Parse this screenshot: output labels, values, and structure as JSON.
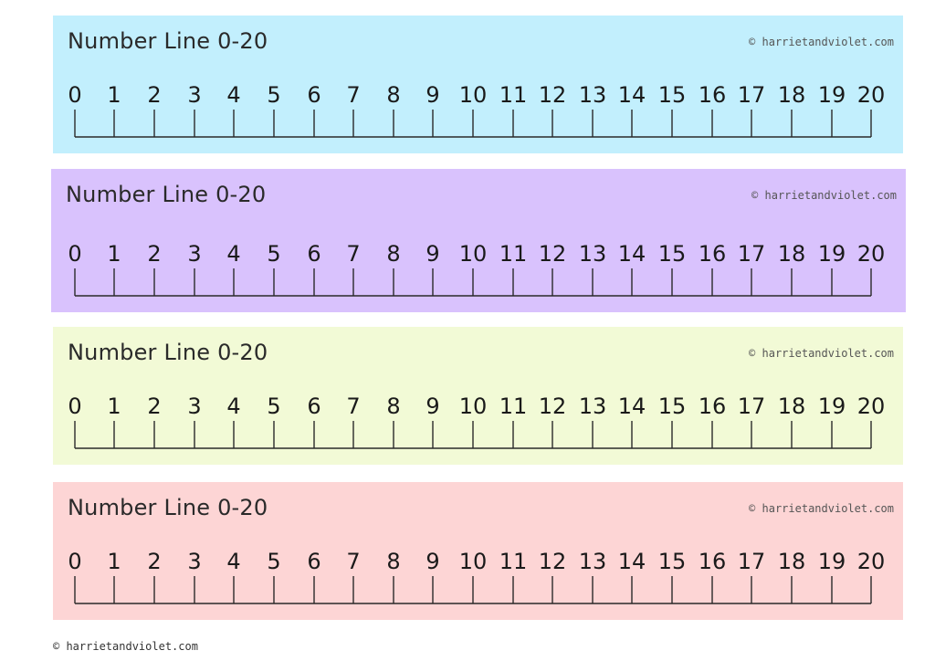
{
  "strips": [
    {
      "title": "Number Line 0-20",
      "credit": "© harrietandviolet.com",
      "color": "#c2effd"
    },
    {
      "title": "Number Line 0-20",
      "credit": "© harrietandviolet.com",
      "color": "#d9c2fd"
    },
    {
      "title": "Number Line 0-20",
      "credit": "© harrietandviolet.com",
      "color": "#f2fad6"
    },
    {
      "title": "Number Line 0-20",
      "credit": "© harrietandviolet.com",
      "color": "#fdd5d5"
    }
  ],
  "numbers": [
    "0",
    "1",
    "2",
    "3",
    "4",
    "5",
    "6",
    "7",
    "8",
    "9",
    "10",
    "11",
    "12",
    "13",
    "14",
    "15",
    "16",
    "17",
    "18",
    "19",
    "20"
  ],
  "footer": "© harrietandviolet.com"
}
